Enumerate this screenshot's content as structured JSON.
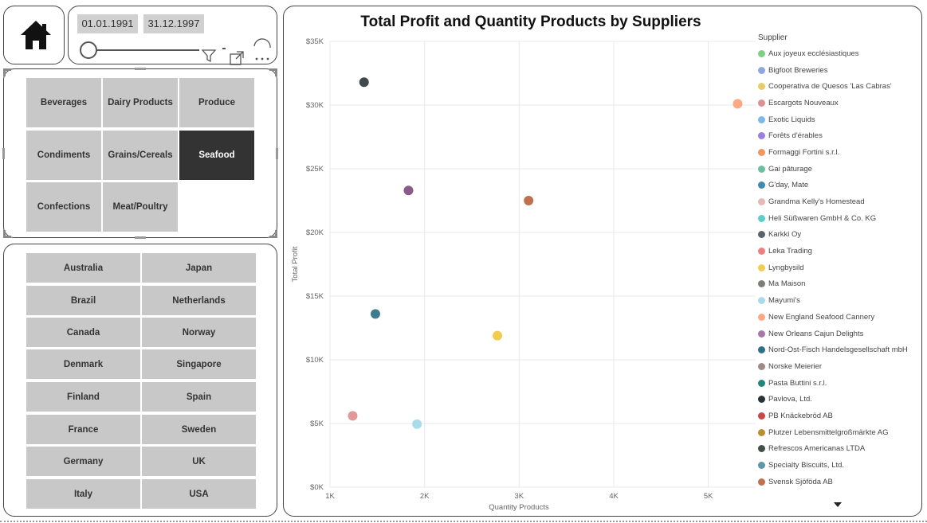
{
  "date_range": {
    "start": "01.01.1991",
    "end": "31.12.1997"
  },
  "categories": [
    {
      "label": "Beverages",
      "active": false
    },
    {
      "label": "Dairy Products",
      "active": false
    },
    {
      "label": "Produce",
      "active": false
    },
    {
      "label": "Condiments",
      "active": false
    },
    {
      "label": "Grains/Cereals",
      "active": false
    },
    {
      "label": "Seafood",
      "active": true
    },
    {
      "label": "Confections",
      "active": false
    },
    {
      "label": "Meat/Poultry",
      "active": false
    }
  ],
  "countries": [
    "Australia",
    "Japan",
    "Brazil",
    "Netherlands",
    "Canada",
    "Norway",
    "Denmark",
    "Singapore",
    "Finland",
    "Spain",
    "France",
    "Sweden",
    "Germany",
    "UK",
    "Italy",
    "USA"
  ],
  "chart_data": {
    "type": "scatter",
    "title": "Total Profit and Quantity Products by Suppliers",
    "xlabel": "Quantity Products",
    "ylabel": "Total Profit",
    "xlim": [
      1000,
      5500
    ],
    "ylim": [
      0,
      35000
    ],
    "x_ticks": [
      "1K",
      "2K",
      "3K",
      "4K",
      "5K"
    ],
    "y_ticks": [
      "$0K",
      "$5K",
      "$10K",
      "$15K",
      "$20K",
      "$25K",
      "$30K",
      "$35K"
    ],
    "legend_title": "Supplier",
    "legend_placement": "right",
    "legend": [
      {
        "name": "Aux joyeux ecclésiastiques",
        "color": "#7fd07f"
      },
      {
        "name": "Bigfoot Breweries",
        "color": "#8fa6e0"
      },
      {
        "name": "Cooperativa de Quesos 'Las Cabras'",
        "color": "#e8cc6a"
      },
      {
        "name": "Escargots Nouveaux",
        "color": "#e09090"
      },
      {
        "name": "Exotic Liquids",
        "color": "#7eb8ea"
      },
      {
        "name": "Forêts d'érables",
        "color": "#9b7fe0"
      },
      {
        "name": "Formaggi Fortini s.r.l.",
        "color": "#ee9860"
      },
      {
        "name": "Gai pâturage",
        "color": "#6cc0a0"
      },
      {
        "name": "G'day, Mate",
        "color": "#3c8cb0"
      },
      {
        "name": "Grandma Kelly's Homestead",
        "color": "#e6b8b8"
      },
      {
        "name": "Heli Süßwaren GmbH & Co. KG",
        "color": "#5ccccc"
      },
      {
        "name": "Karkki Oy",
        "color": "#5a6468"
      },
      {
        "name": "Leka Trading",
        "color": "#f08080"
      },
      {
        "name": "Lyngbysild",
        "color": "#f0cc50"
      },
      {
        "name": "Ma Maison",
        "color": "#7a8078"
      },
      {
        "name": "Mayumi's",
        "color": "#a8dcea"
      },
      {
        "name": "New England Seafood Cannery",
        "color": "#fca882"
      },
      {
        "name": "New Orleans Cajun Delights",
        "color": "#a878a8"
      },
      {
        "name": "Nord-Ost-Fisch Handelsgesellschaft mbH",
        "color": "#2e7088"
      },
      {
        "name": "Norske Meierier",
        "color": "#a08a88"
      },
      {
        "name": "Pasta Buttini s.r.l.",
        "color": "#208878"
      },
      {
        "name": "Pavlova, Ltd.",
        "color": "#2a3438"
      },
      {
        "name": "PB Knäckebröd AB",
        "color": "#c84848"
      },
      {
        "name": "Plutzer Lebensmittelgroßmärkte AG",
        "color": "#b89030"
      },
      {
        "name": "Refrescos Americanas LTDA",
        "color": "#405048"
      },
      {
        "name": "Specialty Biscuits, Ltd.",
        "color": "#5a98a8"
      },
      {
        "name": "Svensk Sjöföda AB",
        "color": "#c07050"
      }
    ],
    "points": [
      {
        "x": 1360,
        "y": 31800,
        "color": "#404a4c"
      },
      {
        "x": 5310,
        "y": 30100,
        "color": "#fca882"
      },
      {
        "x": 1830,
        "y": 23300,
        "color": "#8c5a86"
      },
      {
        "x": 3100,
        "y": 22500,
        "color": "#c07050"
      },
      {
        "x": 1480,
        "y": 13600,
        "color": "#3e7a90"
      },
      {
        "x": 2770,
        "y": 11900,
        "color": "#f0cc50"
      },
      {
        "x": 1240,
        "y": 5600,
        "color": "#e09898"
      },
      {
        "x": 1920,
        "y": 4950,
        "color": "#a8dcea"
      }
    ]
  }
}
